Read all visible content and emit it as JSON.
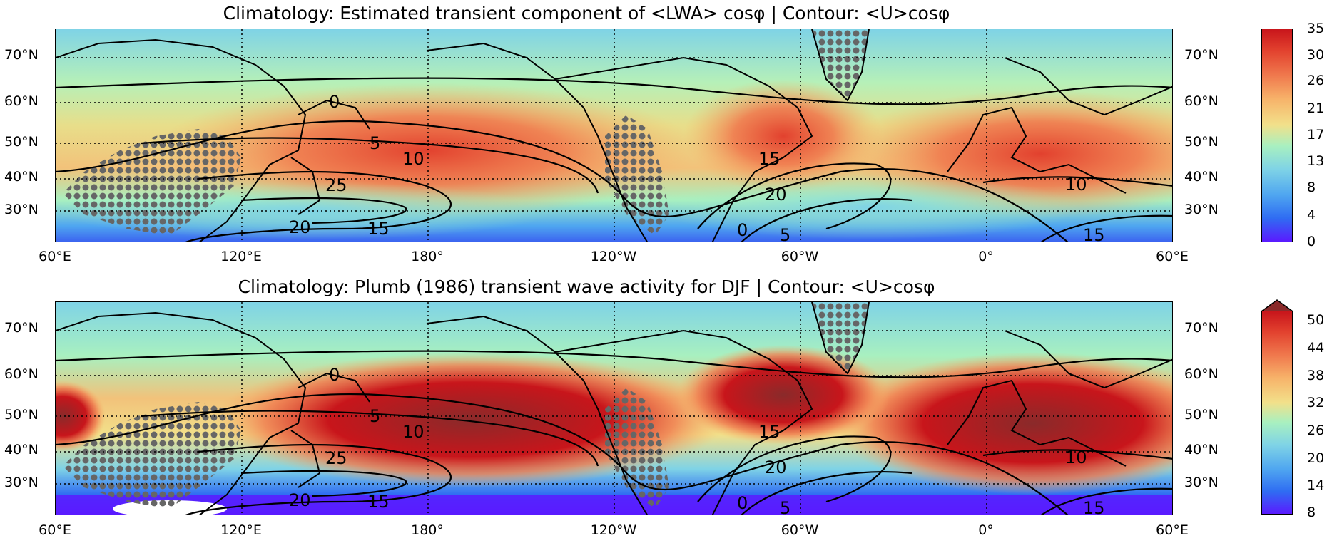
{
  "panels": [
    {
      "title": "Climatology: Estimated transient component of <LWA> cosφ | Contour: <U>cosφ",
      "colorbar_ticks": [
        "35",
        "30",
        "26",
        "21",
        "17",
        "13",
        "8",
        "4",
        "0"
      ],
      "colorbar_extend_top": false
    },
    {
      "title": "Climatology: Plumb (1986) transient wave activity for DJF | Contour: <U>cosφ",
      "colorbar_ticks": [
        "50",
        "44",
        "38",
        "32",
        "26",
        "20",
        "14",
        "8"
      ],
      "colorbar_extend_top": true
    }
  ],
  "lat_labels": [
    "70°N",
    "60°N",
    "50°N",
    "40°N",
    "30°N"
  ],
  "lon_labels": [
    "60°E",
    "120°E",
    "180°",
    "120°W",
    "60°W",
    "0°",
    "60°E"
  ],
  "contour_labels": [
    "0",
    "5",
    "10",
    "25",
    "20",
    "15",
    "15",
    "20",
    "0",
    "5",
    "10",
    "15"
  ],
  "colors": {
    "colormap": [
      "#5a1aff",
      "#2f6cf2",
      "#4fa6f0",
      "#7fd3e6",
      "#a8f0c0",
      "#d2f2a0",
      "#f2e08a",
      "#f7b36a",
      "#f07a4e",
      "#e2412e",
      "#c8151b",
      "#8a2a2a"
    ],
    "land_stipple": "#666666",
    "contour": "#000000"
  }
}
